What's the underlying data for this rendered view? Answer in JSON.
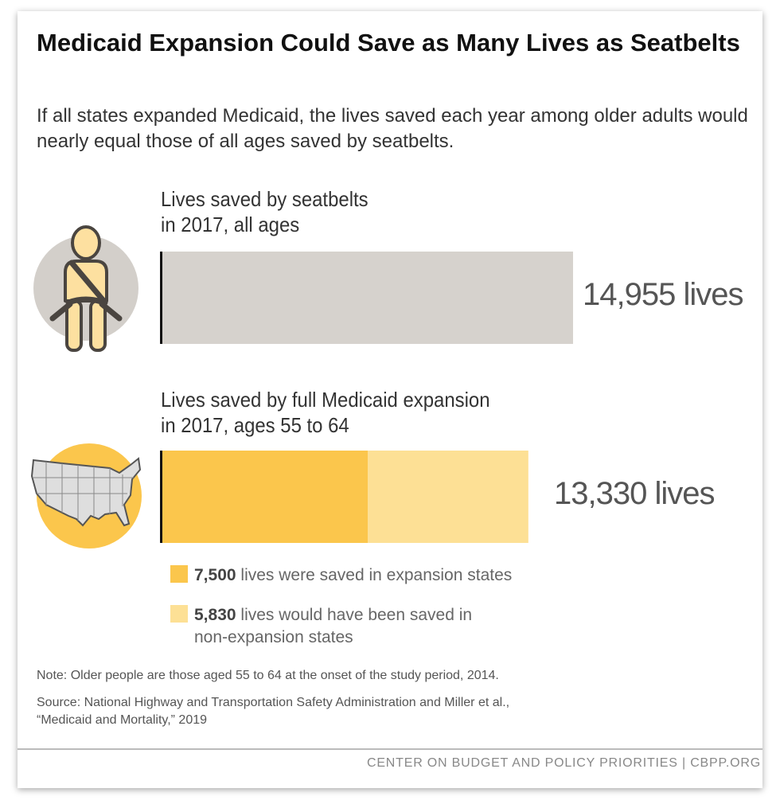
{
  "title": "Medicaid Expansion Could Save as Many Lives as Seatbelts",
  "subtitle": "If all states expanded Medicaid, the lives saved each year among older adults would nearly equal those of all ages saved by seatbelts.",
  "chart_data": {
    "type": "bar",
    "orientation": "horizontal",
    "categories": [
      "Lives saved by seatbelts in 2017, all ages",
      "Lives saved by full Medicaid expansion in 2017, ages 55 to 64"
    ],
    "category_lines": [
      [
        "Lives saved by seatbelts",
        "in 2017, all ages"
      ],
      [
        "Lives saved by full Medicaid expansion",
        "in 2017, ages 55 to 64"
      ]
    ],
    "totals": [
      14955,
      13330
    ],
    "total_labels": [
      "14,955 lives",
      "13,330 lives"
    ],
    "series": [
      {
        "name": "lives were saved in expansion states",
        "values": [
          14955,
          7500
        ],
        "colors": [
          "#d6d2cd",
          "#fbc64c"
        ]
      },
      {
        "name": "lives would have been saved in non-expansion states",
        "values": [
          0,
          5830
        ],
        "colors": [
          "#d6d2cd",
          "#fde095"
        ]
      }
    ],
    "legend": [
      {
        "value": "7,500",
        "text": "lives were saved in expansion states",
        "color": "#fbc64c"
      },
      {
        "value": "5,830",
        "text": "lives would have been saved in",
        "text2": "non-expansion states",
        "color": "#fde095"
      }
    ],
    "xlim": [
      0,
      14955
    ],
    "grid": false,
    "icons": [
      "seatbelt-person-icon",
      "us-map-icon"
    ]
  },
  "notes": {
    "note": "Note: Older people are those aged 55 to 64 at the onset of the study period, 2014.",
    "source1": "Source: National Highway and Transportation Safety Administration and Miller et al.,",
    "source2": "“Medicaid and Mortality,” 2019"
  },
  "footer": "CENTER ON BUDGET AND POLICY PRIORITIES | CBPP.ORG"
}
